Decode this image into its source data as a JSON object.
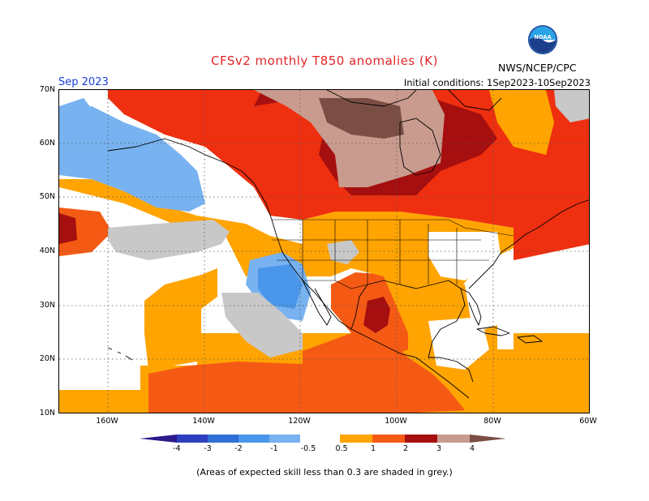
{
  "header": {
    "title": "CFSv2 monthly T850 anomalies (K)",
    "month": "Sep 2023",
    "initial_conditions": "Initial conditions: 1Sep2023-10Sep2023",
    "org": "NWS/NCEP/CPC",
    "logo_text": "NOAA"
  },
  "map": {
    "lat_labels": [
      "70N",
      "60N",
      "50N",
      "40N",
      "30N",
      "20N",
      "10N"
    ],
    "lon_labels": [
      "160W",
      "140W",
      "120W",
      "100W",
      "80W",
      "60W"
    ]
  },
  "colorbar": {
    "labels": [
      "-4",
      "-3",
      "-2",
      "-1",
      "-0.5",
      "0.5",
      "1",
      "2",
      "3",
      "4"
    ],
    "colors": {
      "lt_m4": "#2a1a8c",
      "m4_m3": "#2d3fbf",
      "m3_m2": "#2f6fd6",
      "m2_m1": "#4a96ea",
      "m1_m05": "#78b2f0",
      "neutral": "#ffffff",
      "p05_p1": "#ffa400",
      "p1_p2": "#f55a14",
      "p2_p3": "#ee3010",
      "p3_p4": "#a60f0f",
      "p4_p5": "#c99b8e",
      "gt_p5": "#7a4e44"
    }
  },
  "footnote": "(Areas of expected skill less than 0.3 are shaded in grey.)"
}
